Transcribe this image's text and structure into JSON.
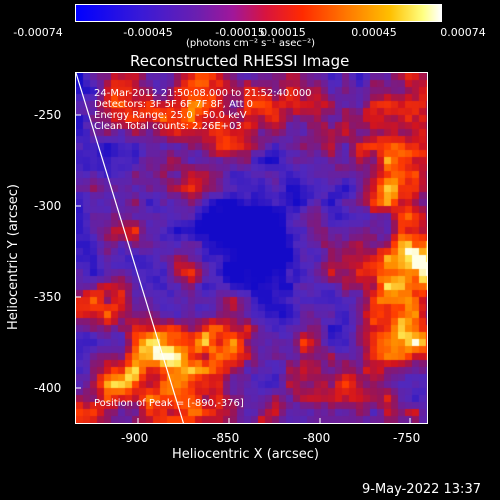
{
  "colorbar": {
    "ticks": [
      "-0.00074",
      "-0.00045",
      "-0.00015",
      "0.00015",
      "0.00045",
      "0.00074"
    ],
    "units": "(photons cm⁻² s⁻¹ asec⁻²)"
  },
  "title": "Reconstructed RHESSI Image",
  "info_lines": [
    "24-Mar-2012 21:50:08.000 to 21:52:40.000",
    "Detectors: 3F 5F 6F 7F 8F, Att 0",
    "Energy Range: 25.0 - 50.0 keV",
    "Clean    Total counts: 2.26E+03"
  ],
  "peak_text": "Position of Peak = [-890,-376]",
  "xaxis": {
    "label": "Heliocentric X (arcsec)",
    "ticks": [
      "-900",
      "-850",
      "-800",
      "-750"
    ]
  },
  "yaxis": {
    "label": "Heliocentric Y (arcsec)",
    "ticks": [
      "-250",
      "-300",
      "-350",
      "-400"
    ]
  },
  "footer_date": "9-May-2022 13:37",
  "colors": {
    "background": "#000000",
    "text": "#ffffff",
    "limb_line": "#ffffff"
  }
}
